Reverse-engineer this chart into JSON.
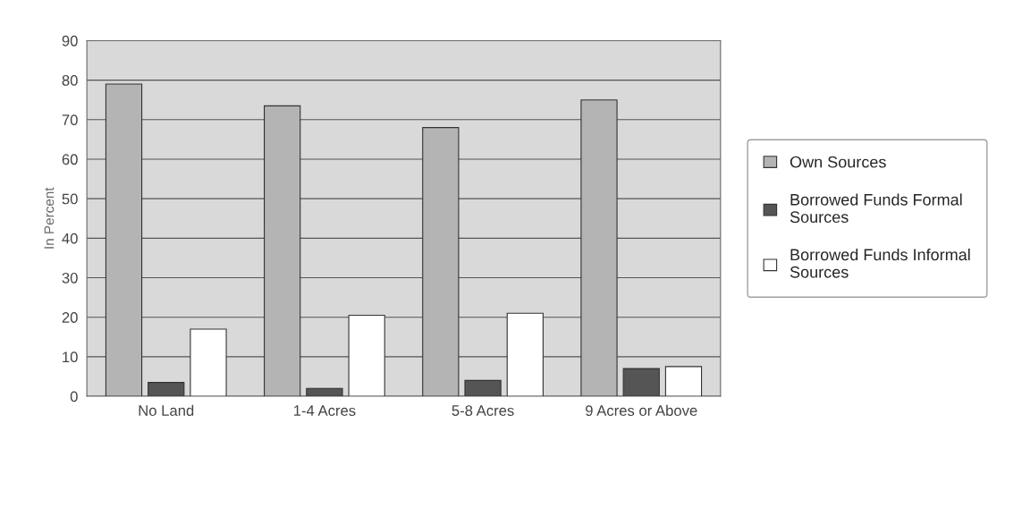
{
  "chart_data": {
    "type": "bar",
    "ylabel": "In Percent",
    "categories": [
      "No Land",
      "1-4 Acres",
      "5-8 Acres",
      "9 Acres or Above"
    ],
    "series": [
      {
        "name": "Own Sources",
        "color": "#b4b4b4",
        "values": [
          79,
          73.5,
          68,
          75
        ]
      },
      {
        "name": "Borrowed Funds Formal Sources",
        "color": "#555555",
        "values": [
          3.5,
          2,
          4,
          7
        ]
      },
      {
        "name": "Borrowed Funds Informal Sources",
        "color": "#ffffff",
        "values": [
          17,
          20.5,
          21,
          7.5
        ]
      }
    ],
    "ylim": [
      0,
      90
    ],
    "yticks": [
      0,
      10,
      20,
      30,
      40,
      50,
      60,
      70,
      80,
      90
    ],
    "grid": "y",
    "legend": "right"
  }
}
